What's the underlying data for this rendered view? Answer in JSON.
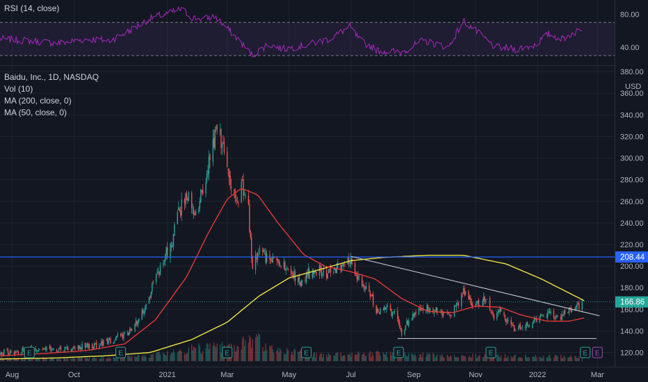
{
  "rsi_pane": {
    "label": "RSI (14, close)",
    "ticks": [
      40,
      80
    ],
    "tick_labels": [
      "40.00",
      "80.00"
    ],
    "upper_band": 70,
    "lower_band": 30,
    "range": [
      20,
      92
    ],
    "line_color": "#9c27b0",
    "band_fill": "#7e57c2"
  },
  "price_pane": {
    "title": "Baidu, Inc., 1D, NASDAQ",
    "currency": "USD",
    "indicators": [
      "Vol (10)",
      "MA (200, close, 0)",
      "MA (50, close, 0)"
    ],
    "ticks": [
      120,
      140,
      160,
      180,
      200,
      220,
      240,
      260,
      280,
      300,
      320,
      340,
      360,
      380
    ],
    "tick_labels": [
      "120.00",
      "140.00",
      "160.00",
      "180.00",
      "200.00",
      "220.00",
      "240.00",
      "260.00",
      "280.00",
      "300.00",
      "320.00",
      "340.00",
      "360.00",
      "380.00"
    ],
    "ylim": [
      112,
      382
    ]
  },
  "time_axis": {
    "labels": [
      "Aug",
      "Oct",
      "2021",
      "Mar",
      "May",
      "Jul",
      "Sep",
      "Nov",
      "2022",
      "Mar"
    ]
  },
  "badges": {
    "horizontal_line": "208.44",
    "last_price": "166.86",
    "earnings_letter": "E"
  },
  "colors": {
    "background": "#131722",
    "grid": "#1f2430",
    "up": "#26a69a",
    "down": "#ef5350",
    "ma200": "#f0e442",
    "ma50": "#e53935",
    "hline": "#2962ff",
    "trend": "#d1d4dc",
    "earnings_past": "#26a69a",
    "earnings_future": "#ab47bc"
  },
  "chart_data": {
    "type": "candlestick",
    "title": "Baidu, Inc., 1D, NASDAQ",
    "ylabel": "USD",
    "ylim": [
      112,
      382
    ],
    "xlim": [
      "2020-07-20",
      "2022-03-18"
    ],
    "close_anchors": [
      [
        "2020-07-20",
        120
      ],
      [
        "2020-08-10",
        121
      ],
      [
        "2020-09-01",
        124
      ],
      [
        "2020-09-20",
        123
      ],
      [
        "2020-10-10",
        126
      ],
      [
        "2020-10-25",
        127
      ],
      [
        "2020-11-10",
        133
      ],
      [
        "2020-11-25",
        138
      ],
      [
        "2020-12-05",
        151
      ],
      [
        "2020-12-15",
        175
      ],
      [
        "2020-12-28",
        205
      ],
      [
        "2021-01-06",
        225
      ],
      [
        "2021-01-15",
        258
      ],
      [
        "2021-01-22",
        262
      ],
      [
        "2021-01-30",
        248
      ],
      [
        "2021-02-08",
        285
      ],
      [
        "2021-02-16",
        316
      ],
      [
        "2021-02-19",
        327
      ],
      [
        "2021-02-26",
        300
      ],
      [
        "2021-03-05",
        276
      ],
      [
        "2021-03-10",
        262
      ],
      [
        "2021-03-16",
        272
      ],
      [
        "2021-03-22",
        250
      ],
      [
        "2021-03-26",
        200
      ],
      [
        "2021-04-02",
        214
      ],
      [
        "2021-04-12",
        205
      ],
      [
        "2021-04-22",
        200
      ],
      [
        "2021-05-03",
        195
      ],
      [
        "2021-05-12",
        182
      ],
      [
        "2021-05-20",
        193
      ],
      [
        "2021-05-28",
        196
      ],
      [
        "2021-06-08",
        193
      ],
      [
        "2021-06-18",
        198
      ],
      [
        "2021-06-25",
        204
      ],
      [
        "2021-06-30",
        206
      ],
      [
        "2021-07-08",
        188
      ],
      [
        "2021-07-20",
        174
      ],
      [
        "2021-07-27",
        158
      ],
      [
        "2021-08-05",
        160
      ],
      [
        "2021-08-13",
        155
      ],
      [
        "2021-08-20",
        139
      ],
      [
        "2021-08-27",
        150
      ],
      [
        "2021-09-05",
        158
      ],
      [
        "2021-09-15",
        163
      ],
      [
        "2021-09-25",
        158
      ],
      [
        "2021-10-05",
        153
      ],
      [
        "2021-10-15",
        167
      ],
      [
        "2021-10-22",
        178
      ],
      [
        "2021-10-28",
        166
      ],
      [
        "2021-11-05",
        165
      ],
      [
        "2021-11-12",
        172
      ],
      [
        "2021-11-18",
        152
      ],
      [
        "2021-11-25",
        158
      ],
      [
        "2021-12-02",
        148
      ],
      [
        "2021-12-10",
        142
      ],
      [
        "2021-12-17",
        145
      ],
      [
        "2021-12-28",
        148
      ],
      [
        "2022-01-05",
        152
      ],
      [
        "2022-01-12",
        160
      ],
      [
        "2022-01-18",
        150
      ],
      [
        "2022-01-26",
        155
      ],
      [
        "2022-02-03",
        160
      ],
      [
        "2022-02-09",
        162
      ],
      [
        "2022-02-14",
        166.86
      ]
    ],
    "ma50_anchors": [
      [
        "2020-07-20",
        117
      ],
      [
        "2020-09-01",
        119
      ],
      [
        "2020-10-15",
        122
      ],
      [
        "2020-11-20",
        128
      ],
      [
        "2020-12-20",
        150
      ],
      [
        "2021-01-20",
        190
      ],
      [
        "2021-02-10",
        230
      ],
      [
        "2021-03-01",
        262
      ],
      [
        "2021-03-15",
        272
      ],
      [
        "2021-03-31",
        266
      ],
      [
        "2021-04-20",
        240
      ],
      [
        "2021-05-15",
        211
      ],
      [
        "2021-06-05",
        200
      ],
      [
        "2021-06-30",
        195
      ],
      [
        "2021-07-25",
        188
      ],
      [
        "2021-08-20",
        170
      ],
      [
        "2021-09-15",
        158
      ],
      [
        "2021-10-10",
        157
      ],
      [
        "2021-11-01",
        163
      ],
      [
        "2021-11-25",
        162
      ],
      [
        "2021-12-15",
        155
      ],
      [
        "2022-01-10",
        149
      ],
      [
        "2022-02-01",
        149
      ],
      [
        "2022-02-16",
        152
      ]
    ],
    "ma200_anchors": [
      [
        "2020-07-20",
        114
      ],
      [
        "2020-09-15",
        115
      ],
      [
        "2020-11-01",
        117
      ],
      [
        "2020-12-15",
        120
      ],
      [
        "2021-01-25",
        132
      ],
      [
        "2021-03-01",
        148
      ],
      [
        "2021-04-01",
        172
      ],
      [
        "2021-05-01",
        189
      ],
      [
        "2021-06-01",
        197
      ],
      [
        "2021-07-01",
        205
      ],
      [
        "2021-08-01",
        208
      ],
      [
        "2021-09-15",
        210
      ],
      [
        "2021-10-20",
        210
      ],
      [
        "2021-12-01",
        202
      ],
      [
        "2022-01-05",
        188
      ],
      [
        "2022-02-16",
        168
      ]
    ],
    "rsi_anchors": [
      [
        "2020-07-20",
        50
      ],
      [
        "2020-08-15",
        48
      ],
      [
        "2020-09-15",
        45
      ],
      [
        "2020-10-15",
        50
      ],
      [
        "2020-11-05",
        48
      ],
      [
        "2020-11-25",
        60
      ],
      [
        "2020-12-15",
        75
      ],
      [
        "2021-01-05",
        82
      ],
      [
        "2021-01-15",
        86
      ],
      [
        "2021-01-25",
        76
      ],
      [
        "2021-02-05",
        74
      ],
      [
        "2021-02-17",
        77
      ],
      [
        "2021-02-28",
        64
      ],
      [
        "2021-03-10",
        52
      ],
      [
        "2021-03-26",
        30
      ],
      [
        "2021-04-10",
        44
      ],
      [
        "2021-04-25",
        38
      ],
      [
        "2021-05-15",
        42
      ],
      [
        "2021-06-10",
        50
      ],
      [
        "2021-06-30",
        65
      ],
      [
        "2021-07-10",
        48
      ],
      [
        "2021-07-28",
        36
      ],
      [
        "2021-08-20",
        34
      ],
      [
        "2021-09-10",
        48
      ],
      [
        "2021-10-05",
        40
      ],
      [
        "2021-10-20",
        72
      ],
      [
        "2021-11-05",
        56
      ],
      [
        "2021-11-20",
        40
      ],
      [
        "2021-12-10",
        38
      ],
      [
        "2021-12-28",
        42
      ],
      [
        "2022-01-12",
        56
      ],
      [
        "2022-01-25",
        50
      ],
      [
        "2022-02-16",
        64
      ]
    ],
    "volume_anchors": [
      [
        "2020-07-20",
        0.12
      ],
      [
        "2020-10-01",
        0.12
      ],
      [
        "2020-12-01",
        0.18
      ],
      [
        "2021-01-10",
        0.35
      ],
      [
        "2021-02-15",
        0.6
      ],
      [
        "2021-03-10",
        0.45
      ],
      [
        "2021-03-26",
        1.0
      ],
      [
        "2021-04-10",
        0.5
      ],
      [
        "2021-06-01",
        0.22
      ],
      [
        "2021-08-01",
        0.3
      ],
      [
        "2021-10-01",
        0.22
      ],
      [
        "2021-12-01",
        0.2
      ],
      [
        "2022-02-16",
        0.18
      ]
    ],
    "horizontal_line": 208.44,
    "last_price": 166.86,
    "trendline": [
      [
        "2021-07-01",
        209
      ],
      [
        "2022-03-03",
        154
      ]
    ],
    "support_line": [
      [
        "2021-08-16",
        133
      ],
      [
        "2022-02-28",
        133
      ]
    ],
    "earnings_dates_past": [
      "2020-08-18",
      "2020-11-16",
      "2021-03-01",
      "2021-05-18",
      "2021-08-17",
      "2021-11-16",
      "2022-02-17"
    ],
    "earnings_dates_future": [
      "2022-03-01"
    ]
  }
}
